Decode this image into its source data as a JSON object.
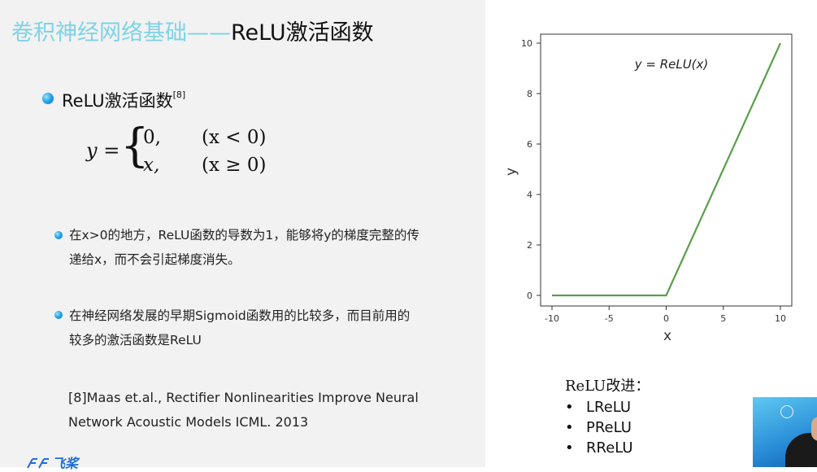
{
  "slide": {
    "title_part1": "卷积神经网络基础——",
    "title_part2": "ReLU激活函数",
    "heading": "ReLU激活函数",
    "heading_ref": "[8]",
    "formula": {
      "lhs": "y =",
      "brace": "{",
      "case1_value": "0,",
      "case1_cond": "(x < 0)",
      "case2_value": "x,",
      "case2_cond": "(x ≥ 0)"
    },
    "bullet1_line1": "在x>0的地方，ReLU函数的导数为1，能够将y的梯度完整的传",
    "bullet1_line2": "递给x，而不会引起梯度消失。",
    "bullet2_line1": "在神经网络发展的早期Sigmoid函数用的比较多，而目前用的",
    "bullet2_line2": "较多的激活函数是ReLU",
    "reference_line1": "[8]Maas et.al., Rectifier Nonlinearities Improve Neural",
    "reference_line2": "Network Acoustic Models ICML. 2013",
    "logo_text": "飞桨",
    "improvements_title": "ReLU改进：",
    "improvements": [
      "LReLU",
      "PReLU",
      "RReLU"
    ]
  },
  "chart_data": {
    "type": "line",
    "annotation": "y = ReLU(x)",
    "xlabel": "x",
    "ylabel": "y",
    "xlim": [
      -10,
      10
    ],
    "ylim": [
      0,
      10
    ],
    "xticks": [
      -10,
      -5,
      0,
      5,
      10
    ],
    "yticks": [
      0,
      2,
      4,
      6,
      8,
      10
    ],
    "grid": false,
    "series": [
      {
        "x": [
          -10,
          0,
          10
        ],
        "y": [
          0,
          0,
          10
        ],
        "color": "#5a9e4b"
      }
    ]
  },
  "colors": {
    "title_accent": "#7ed3e6",
    "bullet": "#2aa6e8",
    "line": "#5a9e4b"
  }
}
